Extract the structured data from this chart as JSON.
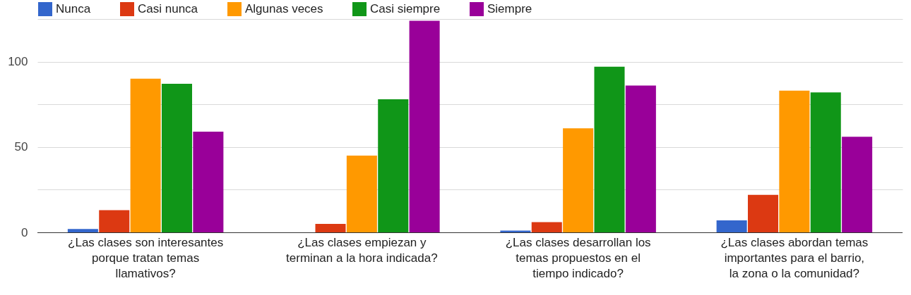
{
  "chart_data": {
    "type": "bar",
    "categories": [
      "¿Las clases son interesantes porque tratan temas llamativos?",
      "¿Las clases empiezan y terminan a la hora indicada?",
      "¿Las clases desarrollan los temas propuestos en el tiempo indicado?",
      "¿Las clases abordan temas importantes para el barrio, la zona o la comunidad?"
    ],
    "series": [
      {
        "name": "Nunca",
        "color": "#3366cc",
        "values": [
          2,
          0,
          1,
          7
        ]
      },
      {
        "name": "Casi nunca",
        "color": "#dc3912",
        "values": [
          13,
          5,
          6,
          22
        ]
      },
      {
        "name": "Algunas veces",
        "color": "#ff9900",
        "values": [
          90,
          45,
          61,
          83
        ]
      },
      {
        "name": "Casi siempre",
        "color": "#109618",
        "values": [
          87,
          78,
          97,
          82
        ]
      },
      {
        "name": "Siempre",
        "color": "#990099",
        "values": [
          59,
          124,
          86,
          56
        ]
      }
    ],
    "ylim": [
      0,
      125
    ],
    "yticks": [
      0,
      {
        "value": 25,
        "label": null
      },
      50,
      {
        "value": 75,
        "label": null
      },
      100,
      {
        "value": 125,
        "label": null
      }
    ],
    "grid": "y",
    "legend": "top left"
  }
}
